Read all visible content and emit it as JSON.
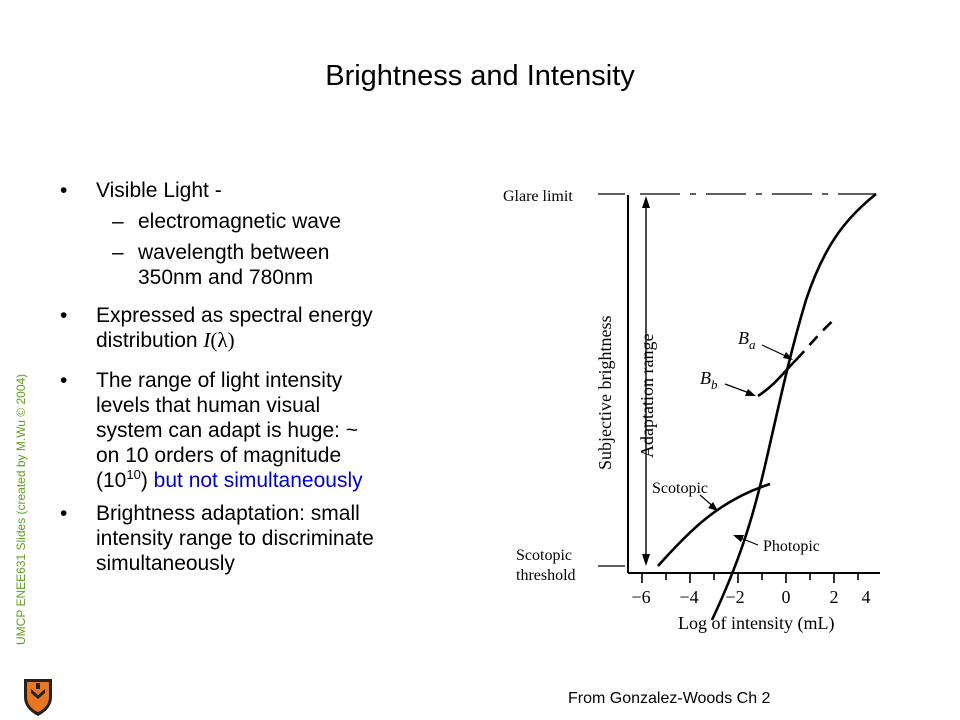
{
  "title": "Brightness and Intensity",
  "watermark": "UMCP ENEE631 Slides (created by M.Wu © 2004)",
  "bullets": {
    "b1": {
      "text": "Visible Light  -"
    },
    "b1_sub1": "electromagnetic wave",
    "b1_sub2_line1": "wavelength between",
    "b1_sub2_line2": "350nm and 780nm",
    "b2_line1": "Expressed as spectral energy",
    "b2_line2": "distribution",
    "b2_symbol": "I",
    "b2_paren_open": "(",
    "b2_lambda": "λ",
    "b2_paren_close": ")",
    "b3_line1": "The range of light intensity",
    "b3_line2": "levels that human visual",
    "b3_line3": "system can adapt is huge: ~",
    "b3_line4": "on 10 orders of magnitude",
    "b3_line5_pre": "(10",
    "b3_line5_sup": "10",
    "b3_line5_post": ")",
    "b3_line5_blue": " but not simultaneously",
    "b4_line1": "Brightness adaptation:  small",
    "b4_line2": "intensity range to discriminate",
    "b4_line3": "simultaneously",
    "bullet_glyph": "•",
    "dash_glyph": "–"
  },
  "figure": {
    "glare_limit": "Glare limit",
    "ylabel": "Subjective brightness",
    "adaptation_range": "Adaptation range",
    "label_ba": "B",
    "label_ba_sub": "a",
    "label_bb": "B",
    "label_bb_sub": "b",
    "scotopic": "Scotopic",
    "photopic": "Photopic",
    "scotopic_threshold_1": "Scotopic",
    "scotopic_threshold_2": "threshold",
    "xlabel": "Log of intensity (mL)",
    "xticks": [
      "−6",
      "−4",
      "−2",
      "0",
      "2",
      "4"
    ]
  },
  "credit": "From Gonzalez-Woods Ch 2",
  "colors": {
    "watermark": "#5fa020",
    "emphasis": "#0000cc",
    "shield_orange": "#e87722",
    "shield_dark": "#222222"
  }
}
